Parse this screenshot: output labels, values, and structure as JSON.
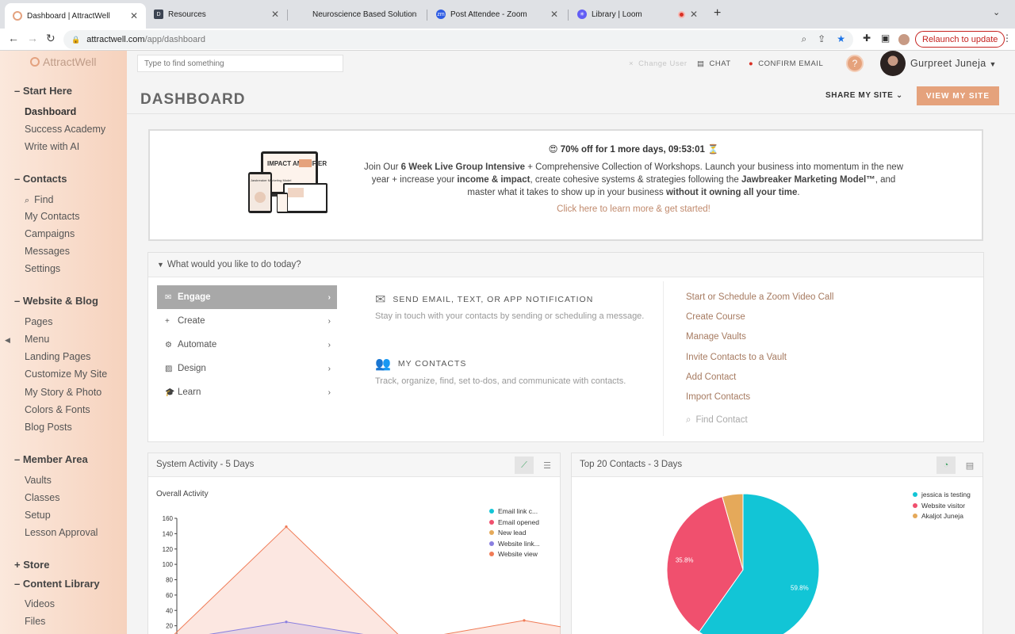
{
  "browser": {
    "tabs": [
      {
        "title": "Dashboard | AttractWell",
        "active": true,
        "favicon_color": "#e4a27f"
      },
      {
        "title": "Resources",
        "active": false,
        "favicon_color": "#3c4452"
      },
      {
        "title": "Neuroscience Based Solutions",
        "active": false,
        "favicon_color": ""
      },
      {
        "title": "Post Attendee - Zoom",
        "active": false,
        "favicon_color": "#2d5be3"
      },
      {
        "title": "Library | Loom",
        "active": false,
        "favicon_color": "#625df5"
      }
    ],
    "url_host": "attractwell.com",
    "url_path": "/app/dashboard",
    "relaunch_label": "Relaunch to update"
  },
  "sidebar": {
    "logo": "AttractWell",
    "sections": [
      {
        "label": "– Start Here",
        "items": [
          "Dashboard",
          "Success Academy",
          "Write with AI"
        ]
      },
      {
        "label": "– Contacts",
        "items": [
          "Find",
          "My Contacts",
          "Campaigns",
          "Messages",
          "Settings"
        ]
      },
      {
        "label": "– Website & Blog",
        "items": [
          "Pages",
          "Menu",
          "Landing Pages",
          "Customize My Site",
          "My Story & Photo",
          "Colors & Fonts",
          "Blog Posts"
        ]
      },
      {
        "label": "– Member Area",
        "items": [
          "Vaults",
          "Classes",
          "Setup",
          "Lesson Approval"
        ]
      },
      {
        "label": "+ Store",
        "items": []
      },
      {
        "label": "– Content Library",
        "items": [
          "Videos",
          "Files"
        ]
      }
    ]
  },
  "header": {
    "search_placeholder": "Type to find something",
    "change_user": "Change User",
    "chat": "CHAT",
    "confirm_email": "CONFIRM EMAIL",
    "help": "?",
    "user_name": "Gurpreet Juneja",
    "page_title": "DASHBOARD",
    "share_label": "SHARE MY SITE",
    "view_site_label": "VIEW MY SITE"
  },
  "promo": {
    "headline": "😍 70% off for 1 more days, 09:53:01 ⏳",
    "body_parts": {
      "p1": "Join Our ",
      "b1": "6 Week Live Group Intensive",
      "p2": " + Comprehensive Collection of Workshops. Launch your business into momentum in the new year + increase your ",
      "b2": "income & impact",
      "p3": ", create cohesive systems & strategies following the ",
      "b3": "Jawbreaker Marketing Model™",
      "p4": ", and master what it takes to show up in your business ",
      "b4": "without it owning all your time",
      "p5": "."
    },
    "art_title": "IMPACT AMPLIFIER",
    "art_sub": "Jawbreaker Marketing Model",
    "link": "Click here to learn more & get started!"
  },
  "todo": {
    "heading": "What would you like to do today?",
    "actions": [
      {
        "label": "Engage",
        "icon": "envelope-icon",
        "active": true
      },
      {
        "label": "Create",
        "icon": "plus-icon",
        "active": false
      },
      {
        "label": "Automate",
        "icon": "gears-icon",
        "active": false
      },
      {
        "label": "Design",
        "icon": "image-icon",
        "active": false
      },
      {
        "label": "Learn",
        "icon": "graduation-cap-icon",
        "active": false
      }
    ],
    "middle": [
      {
        "title": "SEND EMAIL, TEXT, OR APP NOTIFICATION",
        "desc": "Stay in touch with your contacts by sending or scheduling a message."
      },
      {
        "title": "MY CONTACTS",
        "desc": "Track, organize, find, set to-dos, and communicate with contacts."
      }
    ],
    "links": [
      "Start or Schedule a Zoom Video Call",
      "Create Course",
      "Manage Vaults",
      "Invite Contacts to a Vault",
      "Add Contact",
      "Import Contacts"
    ],
    "find_contact": "Find Contact"
  },
  "system_activity": {
    "title": "System Activity - 5 Days",
    "subtitle": "Overall Activity"
  },
  "top_contacts": {
    "title": "Top 20 Contacts - 3 Days"
  },
  "chart_data": [
    {
      "type": "area",
      "title": "Overall Activity",
      "ylim": [
        0,
        160
      ],
      "yticks": [
        20,
        40,
        60,
        80,
        100,
        120,
        140,
        160
      ],
      "x_points": 5,
      "series": [
        {
          "name": "Email link c...",
          "color": "#12c5d6",
          "values": [
            0,
            0,
            0,
            0,
            0
          ]
        },
        {
          "name": "Email opened",
          "color": "#f0506e",
          "values": [
            0,
            0,
            0,
            0,
            0
          ]
        },
        {
          "name": "New lead",
          "color": "#e5a95a",
          "values": [
            0,
            0,
            0,
            0,
            0
          ]
        },
        {
          "name": "Website link...",
          "color": "#8a7fe0",
          "values": [
            0,
            25,
            0,
            0,
            0
          ]
        },
        {
          "name": "Website view",
          "color": "#f07b56",
          "values": [
            0,
            149,
            0,
            27,
            0
          ]
        }
      ]
    },
    {
      "type": "pie",
      "slices": [
        {
          "name": "jessica is testing",
          "value": 59.8,
          "label": "59.8%",
          "color": "#12c5d6"
        },
        {
          "name": "Website visitor",
          "value": 35.8,
          "label": "35.8%",
          "color": "#f0506e"
        },
        {
          "name": "Akaljot Juneja",
          "value": 4.4,
          "label": "",
          "color": "#e5a95a"
        }
      ]
    }
  ]
}
